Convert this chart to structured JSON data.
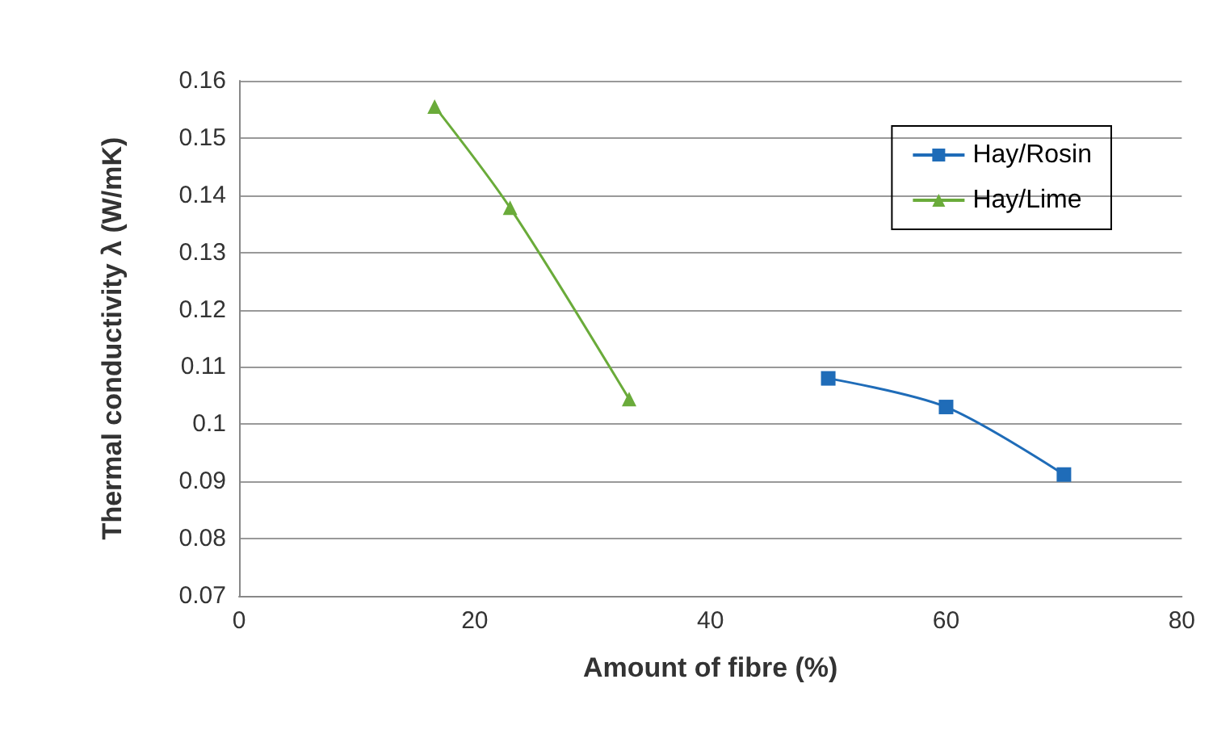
{
  "chart_data": {
    "type": "line",
    "xlabel": "Amount of fibre (%)",
    "ylabel": "Thermal conductivity λ (W/mK)",
    "xlim": [
      0,
      80
    ],
    "xticks": [
      0,
      20,
      40,
      60,
      80
    ],
    "ylim": [
      0.07,
      0.16
    ],
    "yticks": [
      0.07,
      0.08,
      0.09,
      0.1,
      0.11,
      0.12,
      0.13,
      0.14,
      0.15,
      0.16
    ],
    "grid": "y",
    "legend": "top right",
    "series": [
      {
        "name": "Hay/Rosin",
        "color": "#1f6cb8",
        "marker": "square",
        "x": [
          50,
          60,
          70
        ],
        "values": [
          0.108,
          0.103,
          0.0912
        ]
      },
      {
        "name": "Hay/Lime",
        "color": "#6aab3a",
        "marker": "triangle",
        "x": [
          16.6,
          23,
          33.1
        ],
        "values": [
          0.1555,
          0.1378,
          0.1044
        ]
      }
    ]
  }
}
